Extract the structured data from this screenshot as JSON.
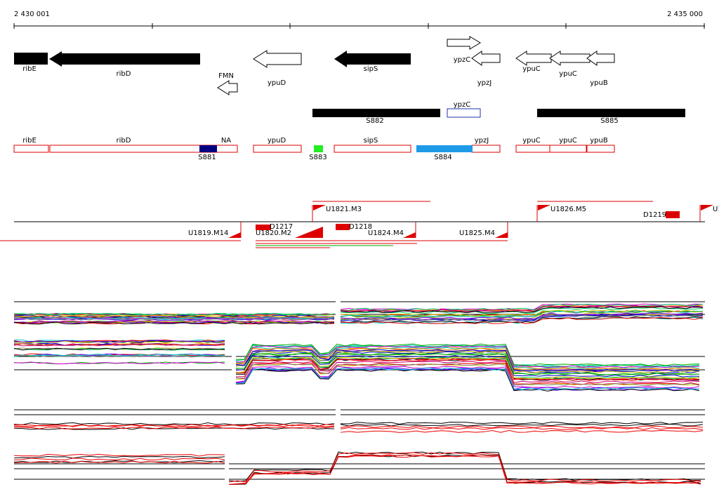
{
  "ruler": {
    "start": "2 430 001",
    "end": "2 435 000"
  },
  "genes": [
    "ribE",
    "ribD",
    "FMN",
    "ypuD",
    "sipS",
    "ypzC",
    "ypzJ",
    "ypuC",
    "ypuC",
    "ypuB"
  ],
  "segments": [
    "S882",
    "ypzC",
    "S885"
  ],
  "regions": [
    "ribE",
    "ribD",
    "NA",
    "S881",
    "ypuD",
    "S883",
    "sipS",
    "S884",
    "ypzJ",
    "ypuC",
    "ypuC",
    "ypuB"
  ],
  "transcripts": [
    "U1821.M3",
    "U1826.M5",
    "D1219",
    "U1",
    "U1819.M14",
    "D1217",
    "U1820.M2",
    "D1218",
    "U1824.M4",
    "U1825.M4"
  ]
}
